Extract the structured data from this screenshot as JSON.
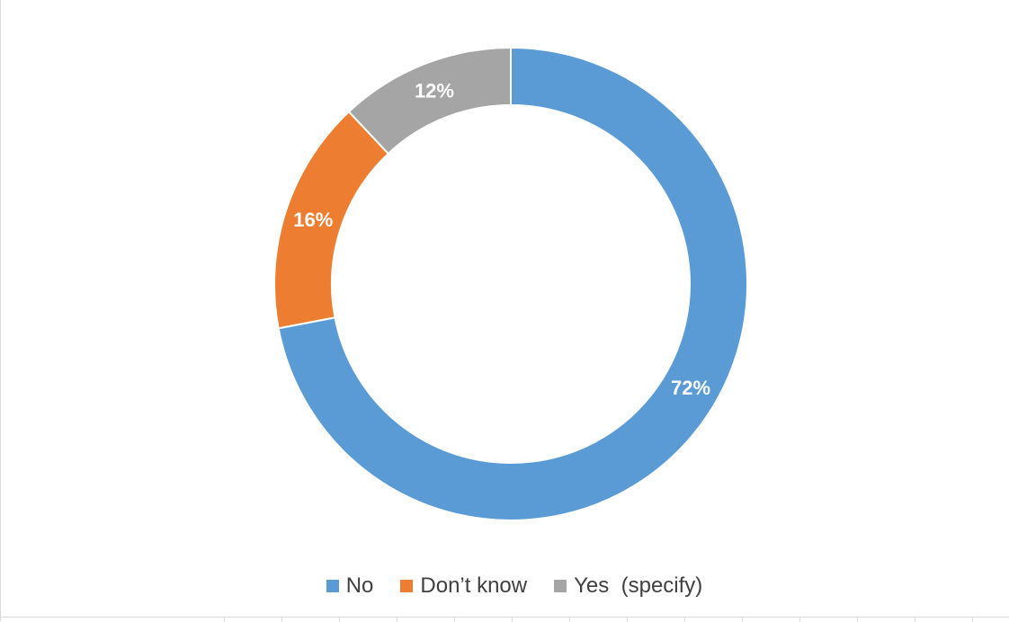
{
  "chart_data": {
    "type": "pie",
    "donut": true,
    "categories": [
      "No",
      "Don’t know",
      "Yes  (specify)"
    ],
    "values": [
      72,
      16,
      12
    ],
    "value_labels": [
      "72%",
      "16%",
      "12%"
    ],
    "colors": [
      "#5b9bd5",
      "#ed7d31",
      "#a5a5a5"
    ],
    "legend_position": "bottom",
    "start_angle_deg": 0,
    "direction": "clockwise"
  },
  "legend": {
    "items": [
      {
        "label": "No",
        "color": "#5b9bd5"
      },
      {
        "label": "Don’t know",
        "color": "#ed7d31"
      },
      {
        "label": "Yes  (specify)",
        "color": "#a5a5a5"
      }
    ]
  }
}
